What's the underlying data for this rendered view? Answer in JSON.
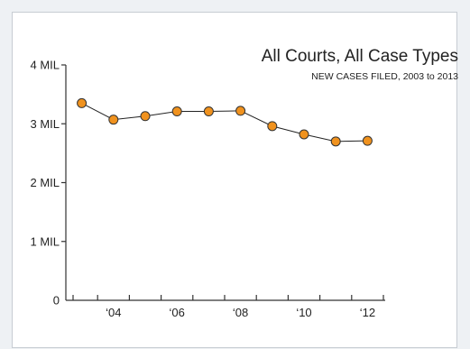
{
  "chart_data": {
    "type": "line",
    "title": "All Courts, All Case Types",
    "subtitle": "NEW CASES FILED, 2003 to 2013",
    "xlabel": "",
    "ylabel": "",
    "x": [
      2003,
      2004,
      2005,
      2006,
      2007,
      2008,
      2009,
      2010,
      2011,
      2012
    ],
    "x_tick_values": [
      2004,
      2006,
      2008,
      2010,
      2012
    ],
    "x_tick_labels": [
      "‘04",
      "‘06",
      "‘08",
      "‘10",
      "‘12"
    ],
    "y_tick_values": [
      0,
      1,
      2,
      3,
      4
    ],
    "y_tick_labels": [
      "0",
      "1 MIL",
      "2 MIL",
      "3 MIL",
      "4 MIL"
    ],
    "ylim": [
      0,
      4
    ],
    "xlim": [
      2002.5,
      2012.5
    ],
    "series": [
      {
        "values": [
          3.35,
          3.07,
          3.13,
          3.21,
          3.21,
          3.22,
          2.96,
          2.82,
          2.7,
          2.71
        ]
      }
    ],
    "grid": false,
    "marker_color": "#f0921e",
    "line_color": "#222222"
  }
}
